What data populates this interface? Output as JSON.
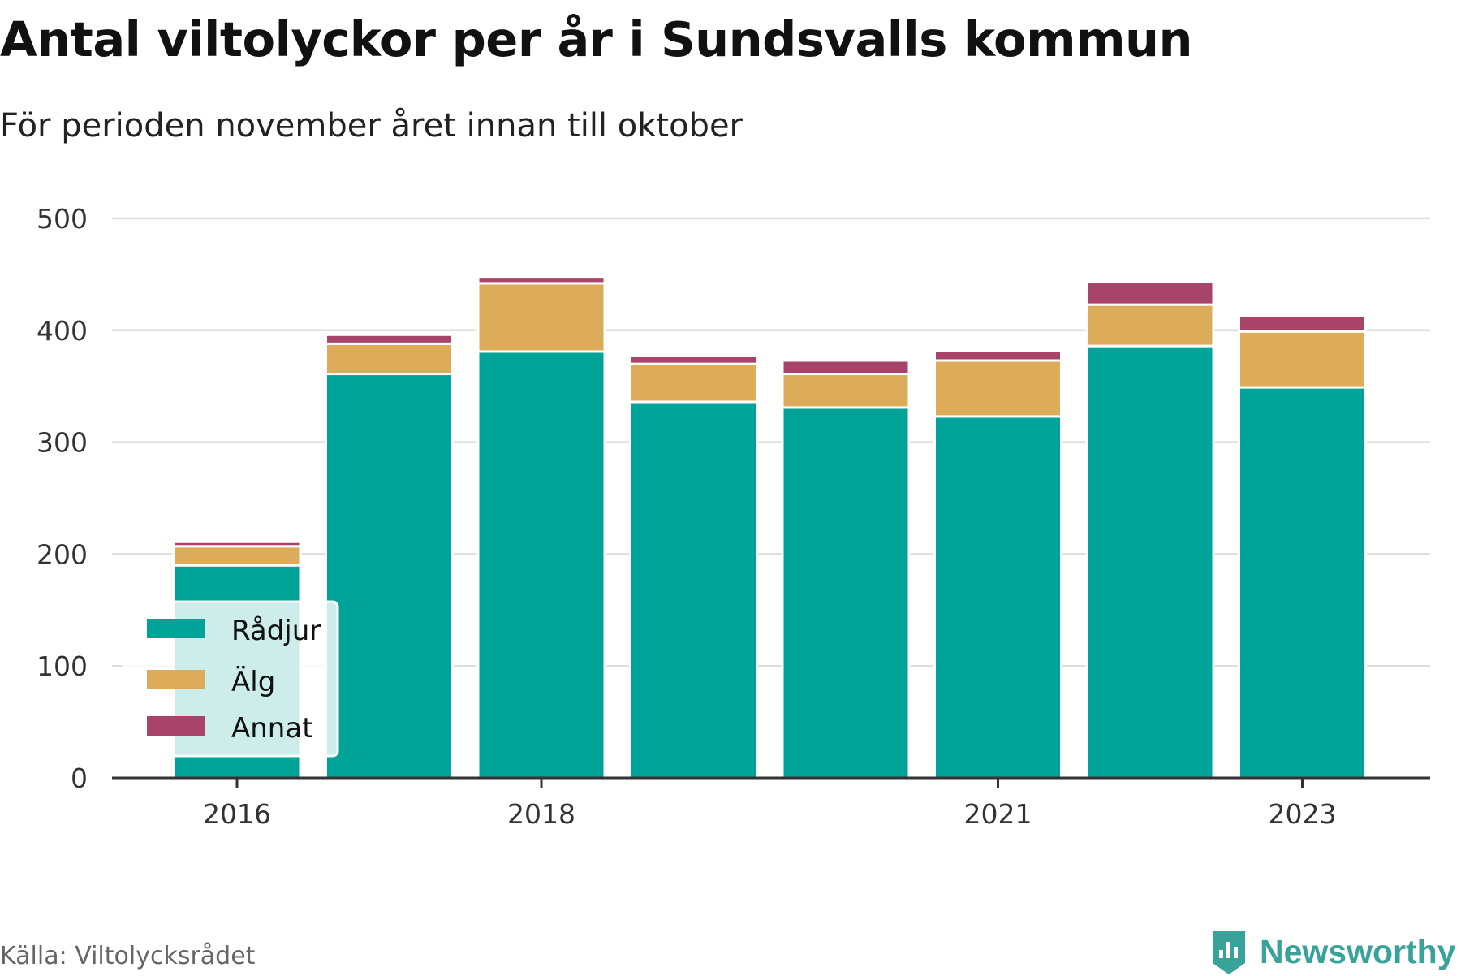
{
  "title": "Antal viltolyckor per år i Sundsvalls kommun",
  "subtitle": "För perioden november året innan till oktober",
  "source": "Källa: Viltolycksrådet",
  "logo": {
    "text": "Newsworthy",
    "icon": "newsworthy-logo-icon"
  },
  "colors": {
    "Rådjur": "#00a398",
    "Älg": "#dcac5a",
    "Annat": "#a8436a",
    "grid": "#dddddd",
    "axis": "#333333"
  },
  "chart_data": {
    "type": "bar",
    "stacked": true,
    "title": "Antal viltolyckor per år i Sundsvalls kommun",
    "subtitle": "För perioden november året innan till oktober",
    "categories": [
      "2016",
      "2017",
      "2018",
      "2019",
      "2020",
      "2021",
      "2022",
      "2023"
    ],
    "x_tick_labels": [
      "2016",
      "2018",
      "2021",
      "2023"
    ],
    "series": [
      {
        "name": "Rådjur",
        "values": [
          190,
          361,
          381,
          336,
          331,
          323,
          386,
          349
        ]
      },
      {
        "name": "Älg",
        "values": [
          17,
          27,
          61,
          34,
          30,
          50,
          37,
          50
        ]
      },
      {
        "name": "Annat",
        "values": [
          4,
          8,
          6,
          7,
          12,
          9,
          20,
          14
        ]
      }
    ],
    "ylim": [
      0,
      500
    ],
    "yticks": [
      0,
      100,
      200,
      300,
      400,
      500
    ],
    "xlabel": "",
    "ylabel": "",
    "grid": true,
    "legend_position": "bottom-left"
  }
}
